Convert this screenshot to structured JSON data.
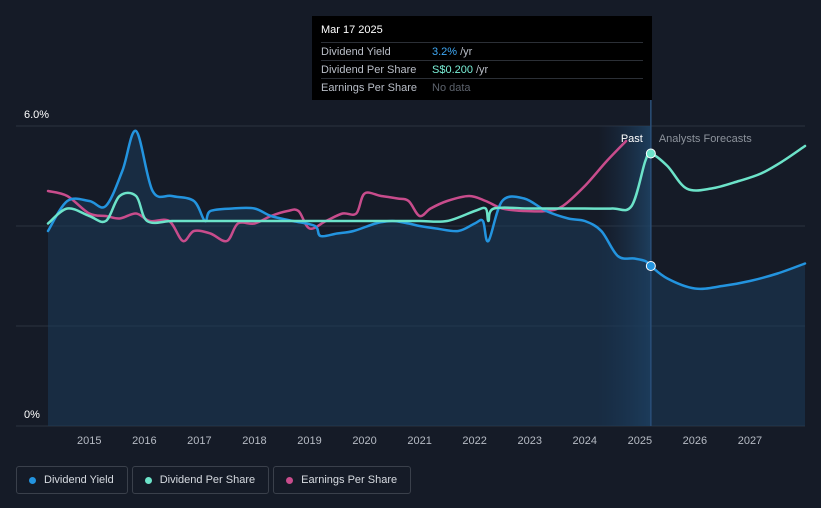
{
  "tooltip": {
    "date": "Mar 17 2025",
    "rows": [
      {
        "label": "Dividend Yield",
        "value": "3.2%",
        "unit": "/yr"
      },
      {
        "label": "Dividend Per Share",
        "value": "S$0.200",
        "unit": "/yr"
      },
      {
        "label": "Earnings Per Share",
        "value": "No data",
        "unit": ""
      }
    ]
  },
  "legend": [
    {
      "label": "Dividend Yield",
      "color": "#2394df"
    },
    {
      "label": "Dividend Per Share",
      "color": "#6ce3c9"
    },
    {
      "label": "Earnings Per Share",
      "color": "#c84c8c"
    }
  ],
  "chart_data": {
    "type": "line",
    "x_range": [
      2014.25,
      2028.0
    ],
    "ylim": [
      0,
      6.0
    ],
    "y_tick_labels": [
      {
        "value": 6.0,
        "label": "6.0%"
      },
      {
        "value": 0,
        "label": "0%"
      }
    ],
    "x_tick_labels": [
      "2015",
      "2016",
      "2017",
      "2018",
      "2019",
      "2020",
      "2021",
      "2022",
      "2023",
      "2024",
      "2025",
      "2026",
      "2027"
    ],
    "past_label": "Past",
    "forecast_label": "Analysts Forecasts",
    "forecast_start": 2024.25,
    "cursor_x": 2025.2,
    "series": [
      {
        "name": "Dividend Yield",
        "color": "#2394df",
        "points": [
          [
            2014.25,
            3.9
          ],
          [
            2014.6,
            4.5
          ],
          [
            2015.0,
            4.5
          ],
          [
            2015.3,
            4.4
          ],
          [
            2015.6,
            5.1
          ],
          [
            2015.85,
            5.9
          ],
          [
            2016.15,
            4.7
          ],
          [
            2016.5,
            4.6
          ],
          [
            2016.9,
            4.5
          ],
          [
            2017.1,
            4.1
          ],
          [
            2017.2,
            4.3
          ],
          [
            2017.6,
            4.35
          ],
          [
            2018.0,
            4.35
          ],
          [
            2018.3,
            4.2
          ],
          [
            2018.7,
            4.1
          ],
          [
            2019.1,
            4.0
          ],
          [
            2019.2,
            3.8
          ],
          [
            2019.5,
            3.85
          ],
          [
            2019.8,
            3.9
          ],
          [
            2020.2,
            4.05
          ],
          [
            2020.5,
            4.1
          ],
          [
            2020.8,
            4.05
          ],
          [
            2021.0,
            4.0
          ],
          [
            2021.3,
            3.95
          ],
          [
            2021.7,
            3.9
          ],
          [
            2022.0,
            4.05
          ],
          [
            2022.15,
            4.1
          ],
          [
            2022.25,
            3.7
          ],
          [
            2022.5,
            4.5
          ],
          [
            2022.9,
            4.55
          ],
          [
            2023.3,
            4.3
          ],
          [
            2023.7,
            4.15
          ],
          [
            2024.0,
            4.1
          ],
          [
            2024.3,
            3.9
          ],
          [
            2024.6,
            3.4
          ],
          [
            2024.9,
            3.35
          ],
          [
            2025.1,
            3.3
          ],
          [
            2025.2,
            3.2
          ],
          [
            2025.5,
            2.95
          ],
          [
            2026.0,
            2.75
          ],
          [
            2026.5,
            2.8
          ],
          [
            2027.0,
            2.9
          ],
          [
            2027.5,
            3.05
          ],
          [
            2028.0,
            3.25
          ]
        ]
      },
      {
        "name": "Dividend Per Share",
        "color": "#6ce3c9",
        "points": [
          [
            2014.25,
            4.05
          ],
          [
            2014.6,
            4.35
          ],
          [
            2015.0,
            4.2
          ],
          [
            2015.3,
            4.1
          ],
          [
            2015.55,
            4.6
          ],
          [
            2015.85,
            4.6
          ],
          [
            2016.05,
            4.1
          ],
          [
            2016.5,
            4.1
          ],
          [
            2017.0,
            4.1
          ],
          [
            2017.5,
            4.1
          ],
          [
            2018.0,
            4.1
          ],
          [
            2018.5,
            4.1
          ],
          [
            2019.0,
            4.1
          ],
          [
            2019.5,
            4.1
          ],
          [
            2020.0,
            4.1
          ],
          [
            2020.5,
            4.1
          ],
          [
            2021.0,
            4.1
          ],
          [
            2021.5,
            4.1
          ],
          [
            2022.0,
            4.3
          ],
          [
            2022.2,
            4.35
          ],
          [
            2022.25,
            4.1
          ],
          [
            2022.35,
            4.35
          ],
          [
            2023.0,
            4.35
          ],
          [
            2023.5,
            4.35
          ],
          [
            2024.0,
            4.35
          ],
          [
            2024.5,
            4.35
          ],
          [
            2024.85,
            4.4
          ],
          [
            2025.1,
            5.3
          ],
          [
            2025.2,
            5.45
          ],
          [
            2025.5,
            5.2
          ],
          [
            2025.85,
            4.75
          ],
          [
            2026.3,
            4.75
          ],
          [
            2026.8,
            4.9
          ],
          [
            2027.2,
            5.05
          ],
          [
            2027.6,
            5.3
          ],
          [
            2028.0,
            5.6
          ]
        ]
      },
      {
        "name": "Earnings Per Share",
        "color": "#c84c8c",
        "points": [
          [
            2014.25,
            4.7
          ],
          [
            2014.6,
            4.6
          ],
          [
            2015.0,
            4.25
          ],
          [
            2015.3,
            4.2
          ],
          [
            2015.55,
            4.15
          ],
          [
            2015.85,
            4.25
          ],
          [
            2016.1,
            4.1
          ],
          [
            2016.45,
            4.1
          ],
          [
            2016.7,
            3.7
          ],
          [
            2016.9,
            3.9
          ],
          [
            2017.2,
            3.85
          ],
          [
            2017.5,
            3.7
          ],
          [
            2017.7,
            4.05
          ],
          [
            2018.0,
            4.05
          ],
          [
            2018.3,
            4.2
          ],
          [
            2018.6,
            4.3
          ],
          [
            2018.8,
            4.3
          ],
          [
            2019.0,
            3.95
          ],
          [
            2019.3,
            4.1
          ],
          [
            2019.6,
            4.25
          ],
          [
            2019.85,
            4.25
          ],
          [
            2020.0,
            4.65
          ],
          [
            2020.3,
            4.6
          ],
          [
            2020.6,
            4.55
          ],
          [
            2020.8,
            4.5
          ],
          [
            2021.0,
            4.2
          ],
          [
            2021.2,
            4.35
          ],
          [
            2021.5,
            4.5
          ],
          [
            2021.9,
            4.6
          ],
          [
            2022.2,
            4.5
          ],
          [
            2022.5,
            4.35
          ],
          [
            2022.9,
            4.3
          ],
          [
            2023.3,
            4.3
          ],
          [
            2023.6,
            4.4
          ],
          [
            2024.0,
            4.8
          ],
          [
            2024.4,
            5.3
          ],
          [
            2024.75,
            5.7
          ]
        ]
      }
    ]
  }
}
